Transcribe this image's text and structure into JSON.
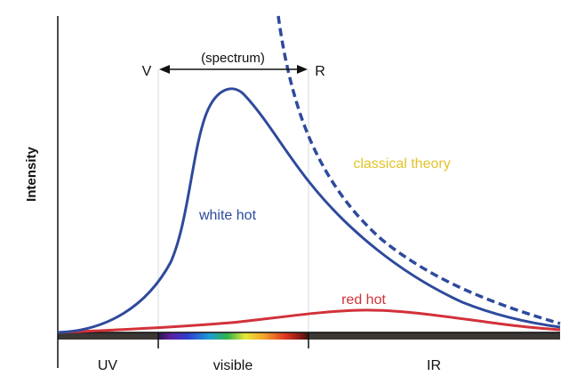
{
  "ylabel": "Intensity",
  "spectrum": {
    "label": "(spectrum)",
    "left_end": "V",
    "right_end": "R"
  },
  "regions": [
    {
      "id": "uv",
      "label": "UV"
    },
    {
      "id": "visible",
      "label": "visible"
    },
    {
      "id": "ir",
      "label": "IR"
    }
  ],
  "curves": [
    {
      "id": "white-hot",
      "label": "white hot",
      "color": "#2e4a9c",
      "style": "solid"
    },
    {
      "id": "classical",
      "label": "classical theory",
      "color": "#e2c42a",
      "line_color": "#2e4a9c",
      "style": "dashed"
    },
    {
      "id": "red-hot",
      "label": "red hot",
      "color": "#d2323a",
      "style": "solid"
    }
  ],
  "colors": {
    "axis": "#111111",
    "guide": "#d4d8dc",
    "band_dark": "#3a3734"
  }
}
